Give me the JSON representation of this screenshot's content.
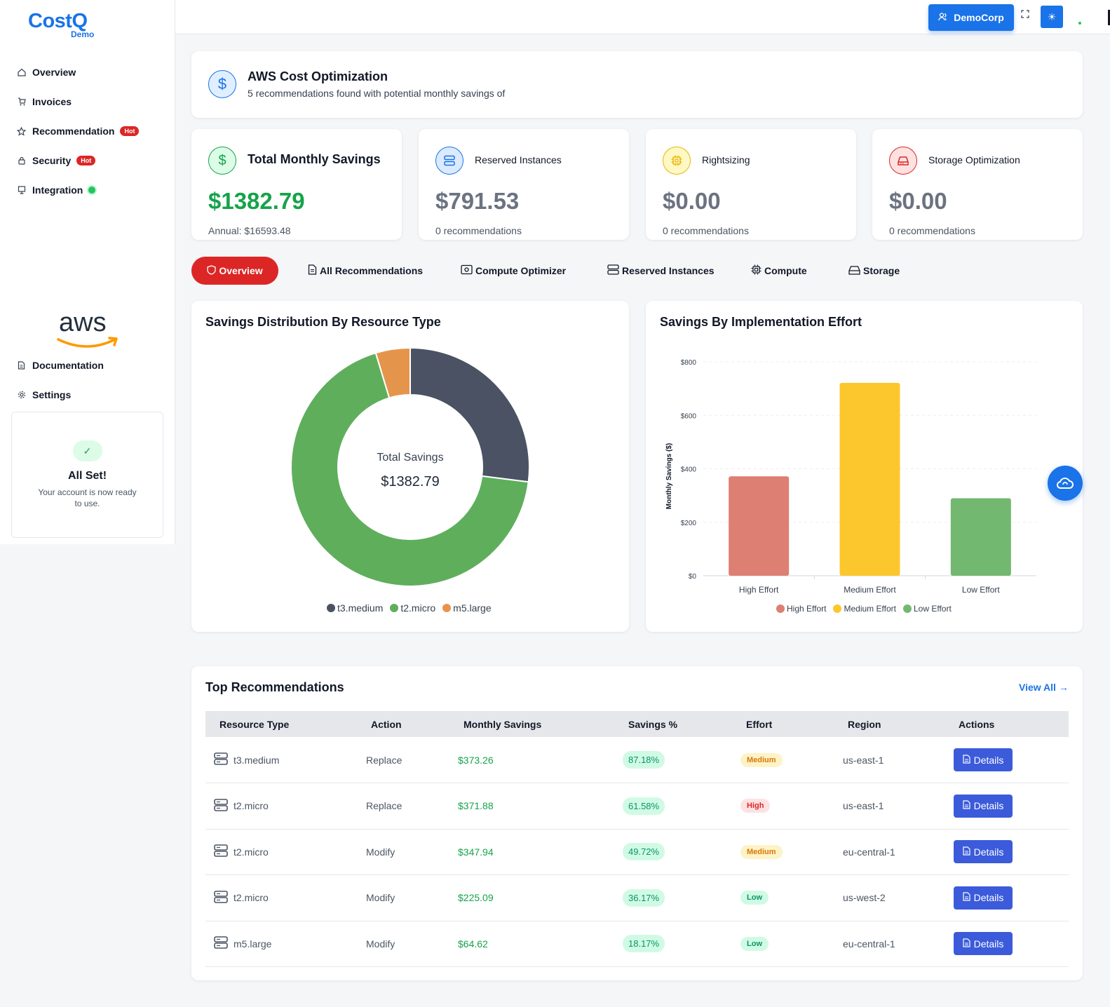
{
  "brand": {
    "name": "CostQ",
    "sub": "Demo"
  },
  "sidebar": {
    "items": [
      {
        "label": "Overview",
        "icon": "home-icon"
      },
      {
        "label": "Invoices",
        "icon": "cart-icon"
      },
      {
        "label": "Recommendation",
        "icon": "star-icon",
        "badge": "Hot"
      },
      {
        "label": "Security",
        "icon": "lock-icon",
        "badge": "Hot"
      },
      {
        "label": "Integration",
        "icon": "monitor-icon",
        "status": "connected"
      }
    ],
    "aws_logo_text": "aws",
    "bottom_items": [
      {
        "label": "Documentation",
        "icon": "document-icon"
      },
      {
        "label": "Settings",
        "icon": "gear-icon"
      }
    ],
    "allset": {
      "title": "All Set!",
      "text": "Your account is now ready to use."
    }
  },
  "topbar": {
    "account": "DemoCorp"
  },
  "header": {
    "title": "AWS Cost Optimization",
    "subtitle": "5 recommendations found with potential monthly savings of"
  },
  "stats": [
    {
      "label": "Total Monthly Savings",
      "value": "$1382.79",
      "sub": "Annual: $16593.48",
      "color": "#16a34a",
      "icon": "dollar-icon"
    },
    {
      "label": "Reserved Instances",
      "value": "$791.53",
      "sub": "0 recommendations",
      "color": "#1a73e8",
      "icon": "server-icon"
    },
    {
      "label": "Rightsizing",
      "value": "$0.00",
      "sub": "0 recommendations",
      "color": "#eab308",
      "icon": "cpu-icon"
    },
    {
      "label": "Storage Optimization",
      "value": "$0.00",
      "sub": "0 recommendations",
      "color": "#dc2626",
      "icon": "storage-icon"
    }
  ],
  "tabs": [
    {
      "label": "Overview",
      "icon": "shield-icon"
    },
    {
      "label": "All Recommendations",
      "icon": "document-icon"
    },
    {
      "label": "Compute Optimizer",
      "icon": "optimizer-icon"
    },
    {
      "label": "Reserved Instances",
      "icon": "server-icon"
    },
    {
      "label": "Compute",
      "icon": "cpu-icon"
    },
    {
      "label": "Storage",
      "icon": "storage-icon"
    }
  ],
  "chart_data": [
    {
      "type": "pie",
      "title": "Savings Distribution By Resource Type",
      "center_label": "Total Savings",
      "center_value": "$1382.79",
      "categories": [
        "t3.medium",
        "t2.micro",
        "m5.large"
      ],
      "values": [
        373.26,
        944.91,
        64.62
      ],
      "colors": [
        "#4a5263",
        "#5fae5c",
        "#e5954b"
      ],
      "legend": "bottom"
    },
    {
      "type": "bar",
      "title": "Savings By Implementation Effort",
      "ylabel": "Monthly Savings ($)",
      "categories": [
        "High Effort",
        "Medium Effort",
        "Low Effort"
      ],
      "values": [
        371.88,
        721.2,
        289.71
      ],
      "colors": [
        "#dd7f72",
        "#fcc72d",
        "#73b870"
      ],
      "ylim": [
        0,
        800
      ],
      "yticks": [
        "$0",
        "$200",
        "$400",
        "$600",
        "$800"
      ],
      "legend": "bottom",
      "grid": true
    }
  ],
  "table": {
    "title": "Top Recommendations",
    "view_all": "View All",
    "columns": [
      "Resource Type",
      "Action",
      "Monthly Savings",
      "Savings %",
      "Effort",
      "Region",
      "Actions"
    ],
    "button_label": "Details",
    "rows": [
      {
        "resource": "t3.medium",
        "action": "Replace",
        "savings": "$373.26",
        "pct": "87.18%",
        "effort": "Medium",
        "region": "us-east-1"
      },
      {
        "resource": "t2.micro",
        "action": "Replace",
        "savings": "$371.88",
        "pct": "61.58%",
        "effort": "High",
        "region": "us-east-1"
      },
      {
        "resource": "t2.micro",
        "action": "Modify",
        "savings": "$347.94",
        "pct": "49.72%",
        "effort": "Medium",
        "region": "eu-central-1"
      },
      {
        "resource": "t2.micro",
        "action": "Modify",
        "savings": "$225.09",
        "pct": "36.17%",
        "effort": "Low",
        "region": "us-west-2"
      },
      {
        "resource": "m5.large",
        "action": "Modify",
        "savings": "$64.62",
        "pct": "18.17%",
        "effort": "Low",
        "region": "eu-central-1"
      }
    ]
  }
}
